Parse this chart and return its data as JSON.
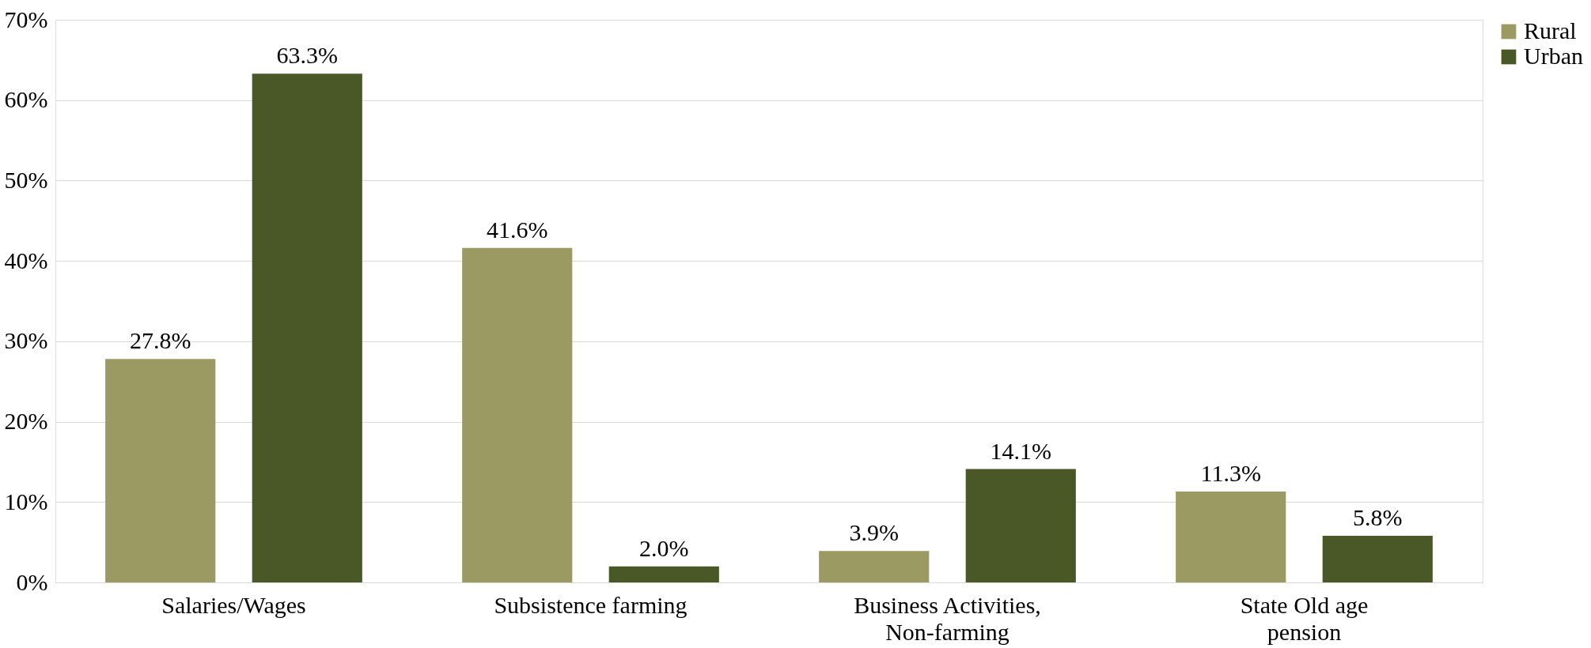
{
  "chart_data": {
    "type": "bar",
    "categories": [
      "Salaries/Wages",
      "Subsistence farming",
      "Business Activities, Non-farming",
      "State Old age pension"
    ],
    "series": [
      {
        "name": "Rural",
        "color": "#9a9a62",
        "values": [
          27.8,
          41.6,
          3.9,
          11.3
        ],
        "value_labels": [
          "27.8%",
          "41.6%",
          "3.9%",
          "11.3%"
        ]
      },
      {
        "name": "Urban",
        "color": "#4a5828",
        "values": [
          63.3,
          2.0,
          14.1,
          5.8
        ],
        "value_labels": [
          "63.3%",
          "2.0%",
          "14.1%",
          "5.8%"
        ]
      }
    ],
    "ylim": [
      0,
      70
    ],
    "yticks": [
      {
        "value": 0,
        "label": "0%"
      },
      {
        "value": 10,
        "label": "10%"
      },
      {
        "value": 20,
        "label": "20%"
      },
      {
        "value": 30,
        "label": "30%"
      },
      {
        "value": 40,
        "label": "40%"
      },
      {
        "value": 50,
        "label": "50%"
      },
      {
        "value": 60,
        "label": "60%"
      },
      {
        "value": 70,
        "label": "70%"
      }
    ],
    "grid": "y",
    "legend": "right"
  }
}
